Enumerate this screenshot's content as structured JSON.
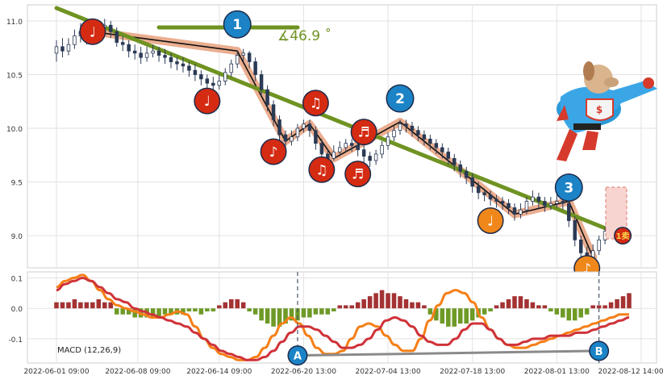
{
  "chart_data": [
    {
      "type": "candlestick",
      "panel": "price",
      "ylim": [
        8.7,
        11.15
      ],
      "yticks": [
        9.0,
        9.5,
        10.0,
        10.5,
        11.0
      ],
      "grid": true,
      "angle_label": "∡46.9 ˚",
      "candles_approx": [
        [
          10.7,
          10.76,
          10.62,
          10.82
        ],
        [
          10.76,
          10.72,
          10.66,
          10.84
        ],
        [
          10.72,
          10.78,
          10.68,
          10.84
        ],
        [
          10.78,
          10.86,
          10.74,
          10.92
        ],
        [
          10.86,
          10.9,
          10.8,
          10.98
        ],
        [
          10.9,
          10.84,
          10.78,
          10.96
        ],
        [
          10.84,
          10.88,
          10.8,
          10.94
        ],
        [
          10.88,
          10.94,
          10.84,
          11.0
        ],
        [
          10.94,
          10.96,
          10.88,
          11.02
        ],
        [
          10.96,
          10.9,
          10.84,
          11.0
        ],
        [
          10.9,
          10.8,
          10.76,
          10.94
        ],
        [
          10.8,
          10.78,
          10.72,
          10.86
        ],
        [
          10.78,
          10.72,
          10.66,
          10.82
        ],
        [
          10.72,
          10.7,
          10.64,
          10.78
        ],
        [
          10.7,
          10.66,
          10.6,
          10.76
        ],
        [
          10.66,
          10.7,
          10.62,
          10.76
        ],
        [
          10.7,
          10.72,
          10.66,
          10.78
        ],
        [
          10.72,
          10.68,
          10.62,
          10.76
        ],
        [
          10.68,
          10.66,
          10.6,
          10.74
        ],
        [
          10.66,
          10.62,
          10.56,
          10.7
        ],
        [
          10.62,
          10.6,
          10.54,
          10.66
        ],
        [
          10.6,
          10.58,
          10.52,
          10.66
        ],
        [
          10.58,
          10.54,
          10.48,
          10.62
        ],
        [
          10.54,
          10.5,
          10.44,
          10.6
        ],
        [
          10.5,
          10.46,
          10.4,
          10.54
        ],
        [
          10.46,
          10.42,
          10.36,
          10.5
        ],
        [
          10.42,
          10.4,
          10.36,
          10.48
        ],
        [
          10.4,
          10.44,
          10.36,
          10.5
        ],
        [
          10.44,
          10.52,
          10.4,
          10.56
        ],
        [
          10.52,
          10.6,
          10.48,
          10.64
        ],
        [
          10.6,
          10.68,
          10.56,
          10.72
        ],
        [
          10.68,
          10.7,
          10.62,
          10.74
        ],
        [
          10.7,
          10.62,
          10.56,
          10.72
        ],
        [
          10.62,
          10.5,
          10.44,
          10.66
        ],
        [
          10.5,
          10.36,
          10.3,
          10.54
        ],
        [
          10.36,
          10.22,
          10.16,
          10.4
        ],
        [
          10.22,
          10.08,
          10.02,
          10.26
        ],
        [
          10.08,
          9.94,
          9.88,
          10.12
        ],
        [
          9.94,
          9.88,
          9.82,
          9.98
        ],
        [
          9.88,
          9.92,
          9.84,
          9.98
        ],
        [
          9.92,
          10.0,
          9.88,
          10.04
        ],
        [
          10.0,
          10.04,
          9.96,
          10.08
        ],
        [
          10.04,
          9.98,
          9.92,
          10.08
        ],
        [
          9.98,
          9.86,
          9.8,
          10.02
        ],
        [
          9.86,
          9.76,
          9.7,
          9.9
        ],
        [
          9.76,
          9.72,
          9.66,
          9.8
        ],
        [
          9.72,
          9.78,
          9.7,
          9.84
        ],
        [
          9.78,
          9.82,
          9.74,
          9.88
        ],
        [
          9.82,
          9.86,
          9.78,
          9.9
        ],
        [
          9.86,
          9.84,
          9.78,
          9.9
        ],
        [
          9.84,
          9.8,
          9.74,
          9.88
        ],
        [
          9.8,
          9.74,
          9.68,
          9.84
        ],
        [
          9.74,
          9.7,
          9.64,
          9.78
        ],
        [
          9.7,
          9.76,
          9.66,
          9.8
        ],
        [
          9.76,
          9.84,
          9.72,
          9.88
        ],
        [
          9.84,
          9.92,
          9.8,
          9.96
        ],
        [
          9.92,
          9.98,
          9.88,
          10.02
        ],
        [
          9.98,
          10.04,
          9.94,
          10.08
        ],
        [
          10.04,
          10.02,
          9.96,
          10.08
        ],
        [
          10.02,
          9.98,
          9.92,
          10.06
        ],
        [
          9.98,
          9.94,
          9.88,
          10.02
        ],
        [
          9.94,
          9.9,
          9.84,
          9.98
        ],
        [
          9.9,
          9.86,
          9.8,
          9.94
        ],
        [
          9.86,
          9.82,
          9.76,
          9.9
        ],
        [
          9.82,
          9.78,
          9.72,
          9.86
        ],
        [
          9.78,
          9.72,
          9.66,
          9.82
        ],
        [
          9.72,
          9.66,
          9.6,
          9.76
        ],
        [
          9.66,
          9.6,
          9.54,
          9.7
        ],
        [
          9.6,
          9.54,
          9.48,
          9.64
        ],
        [
          9.54,
          9.46,
          9.4,
          9.58
        ],
        [
          9.46,
          9.4,
          9.34,
          9.5
        ],
        [
          9.4,
          9.38,
          9.32,
          9.44
        ],
        [
          9.38,
          9.34,
          9.28,
          9.42
        ],
        [
          9.34,
          9.32,
          9.26,
          9.38
        ],
        [
          9.32,
          9.3,
          9.24,
          9.36
        ],
        [
          9.3,
          9.26,
          9.2,
          9.34
        ],
        [
          9.26,
          9.2,
          9.14,
          9.3
        ],
        [
          9.2,
          9.24,
          9.16,
          9.3
        ],
        [
          9.24,
          9.32,
          9.2,
          9.36
        ],
        [
          9.32,
          9.36,
          9.28,
          9.42
        ],
        [
          9.36,
          9.32,
          9.26,
          9.4
        ],
        [
          9.32,
          9.28,
          9.22,
          9.36
        ],
        [
          9.28,
          9.3,
          9.24,
          9.36
        ],
        [
          9.3,
          9.32,
          9.26,
          9.38
        ],
        [
          9.32,
          9.3,
          9.24,
          9.36
        ],
        [
          9.3,
          9.14,
          9.08,
          9.32
        ],
        [
          9.14,
          8.96,
          8.9,
          9.18
        ],
        [
          8.96,
          8.84,
          8.78,
          9.0
        ],
        [
          8.84,
          8.78,
          8.74,
          8.9
        ],
        [
          8.78,
          8.86,
          8.76,
          8.92
        ],
        [
          8.86,
          8.96,
          8.82,
          9.0
        ],
        [
          8.96,
          9.04,
          8.92,
          9.08
        ],
        [
          9.04,
          9.12,
          9.0,
          9.16
        ],
        [
          9.12,
          9.2,
          9.08,
          9.24
        ],
        [
          9.2,
          9.26,
          9.16,
          9.3
        ]
      ],
      "trendlines": [
        {
          "name": "descending-trendline",
          "points": [
            [
              0,
              11.12
            ],
            [
              95,
              8.98
            ]
          ]
        },
        {
          "name": "angle-baseline",
          "points": [
            [
              17,
              10.94
            ],
            [
              40,
              10.94
            ]
          ]
        }
      ],
      "zigzag": [
        [
          6,
          10.9
        ],
        [
          30,
          10.72
        ],
        [
          38,
          9.88
        ],
        [
          42,
          10.04
        ],
        [
          46,
          9.72
        ],
        [
          57,
          10.06
        ],
        [
          76,
          9.2
        ],
        [
          85,
          9.32
        ],
        [
          89,
          8.8
        ]
      ],
      "markers": [
        {
          "label": "♩",
          "i": 6,
          "v": 10.9,
          "color": "#d42b12",
          "r": 15,
          "dx": 0,
          "dy": 0
        },
        {
          "label": "♩",
          "i": 25,
          "v": 10.42,
          "color": "#d42b12",
          "r": 15,
          "dx": 0,
          "dy": 22
        },
        {
          "label": "1",
          "i": 30,
          "v": 10.72,
          "color": "#1b83c6",
          "r": 16,
          "dx": 0,
          "dy": -33
        },
        {
          "label": "♪",
          "i": 36,
          "v": 9.88,
          "color": "#d42b12",
          "r": 15,
          "dx": 0,
          "dy": 13
        },
        {
          "label": "♫",
          "i": 43,
          "v": 10.04,
          "color": "#d42b12",
          "r": 15,
          "dx": 0,
          "dy": -26
        },
        {
          "label": "♫",
          "i": 44,
          "v": 9.72,
          "color": "#d42b12",
          "r": 15,
          "dx": 0,
          "dy": 14
        },
        {
          "label": "♬",
          "i": 51,
          "v": 9.86,
          "color": "#d42b12",
          "r": 15,
          "dx": 0,
          "dy": -14
        },
        {
          "label": "♬",
          "i": 50,
          "v": 9.68,
          "color": "#d42b12",
          "r": 15,
          "dx": 0,
          "dy": 14
        },
        {
          "label": "2",
          "i": 57,
          "v": 10.06,
          "color": "#1b83c6",
          "r": 16,
          "dx": 0,
          "dy": -29
        },
        {
          "label": "♩",
          "i": 72,
          "v": 9.14,
          "color": "#f0871a",
          "r": 15,
          "dx": 0,
          "dy": 0
        },
        {
          "label": "3",
          "i": 85,
          "v": 9.32,
          "color": "#1b83c6",
          "r": 16,
          "dx": 0,
          "dy": -17
        },
        {
          "label": "♪",
          "i": 88,
          "v": 8.74,
          "color": "#f0871a",
          "r": 15,
          "dx": 0,
          "dy": 6
        }
      ],
      "sell_badge": {
        "label": "1卖",
        "i": 93,
        "v": 9.0
      }
    },
    {
      "type": "macd",
      "panel": "indicator",
      "title": "MACD (12,26,9)",
      "ylim": [
        -0.18,
        0.12
      ],
      "yticks": [
        0.1,
        0.0,
        -0.1
      ],
      "histogram": [
        0.02,
        0.02,
        0.02,
        0.03,
        0.02,
        0.02,
        0.02,
        0.03,
        0.02,
        0.02,
        -0.02,
        -0.02,
        -0.02,
        -0.03,
        -0.03,
        -0.03,
        -0.03,
        -0.03,
        -0.02,
        -0.02,
        -0.02,
        -0.02,
        -0.01,
        -0.01,
        -0.02,
        -0.01,
        -0.01,
        0.01,
        0.02,
        0.03,
        0.03,
        0.02,
        -0.01,
        -0.02,
        -0.04,
        -0.05,
        -0.06,
        -0.06,
        -0.05,
        -0.04,
        -0.04,
        -0.03,
        -0.03,
        -0.02,
        -0.02,
        -0.02,
        -0.01,
        0.01,
        0.01,
        0.01,
        0.02,
        0.03,
        0.04,
        0.05,
        0.06,
        0.05,
        0.05,
        0.04,
        0.03,
        0.02,
        0.02,
        0.01,
        -0.02,
        -0.04,
        -0.05,
        -0.06,
        -0.06,
        -0.05,
        -0.05,
        -0.04,
        -0.03,
        -0.02,
        -0.01,
        0.01,
        0.02,
        0.03,
        0.04,
        0.04,
        0.03,
        0.02,
        0.01,
        0.01,
        -0.01,
        -0.02,
        -0.03,
        -0.04,
        -0.04,
        -0.03,
        -0.02,
        0.01,
        0.01,
        0.01,
        0.02,
        0.03,
        0.04,
        0.05
      ],
      "macd_line": [
        0.07,
        0.09,
        0.1,
        0.11,
        0.09,
        0.06,
        0.03,
        0.01,
        0.0,
        -0.01,
        -0.02,
        -0.03,
        -0.03,
        -0.02,
        -0.01,
        -0.02,
        -0.06,
        -0.1,
        -0.13,
        -0.15,
        -0.16,
        -0.17,
        -0.17,
        -0.16,
        -0.13,
        -0.09,
        -0.05,
        -0.03,
        -0.05,
        -0.09,
        -0.13,
        -0.15,
        -0.15,
        -0.14,
        -0.1,
        -0.06,
        -0.05,
        -0.06,
        -0.09,
        -0.12,
        -0.14,
        -0.14,
        -0.1,
        -0.04,
        0.01,
        0.05,
        0.06,
        0.05,
        0.02,
        -0.03,
        -0.07,
        -0.1,
        -0.12,
        -0.13,
        -0.13,
        -0.12,
        -0.11,
        -0.1,
        -0.09,
        -0.08,
        -0.07,
        -0.06,
        -0.05,
        -0.04,
        -0.03,
        -0.02,
        -0.02
      ],
      "signal_line": [
        0.06,
        0.08,
        0.09,
        0.1,
        0.09,
        0.07,
        0.05,
        0.03,
        0.02,
        0.0,
        -0.01,
        -0.02,
        -0.03,
        -0.04,
        -0.05,
        -0.06,
        -0.08,
        -0.1,
        -0.12,
        -0.14,
        -0.15,
        -0.16,
        -0.17,
        -0.17,
        -0.16,
        -0.14,
        -0.11,
        -0.08,
        -0.06,
        -0.06,
        -0.07,
        -0.09,
        -0.11,
        -0.13,
        -0.13,
        -0.12,
        -0.1,
        -0.07,
        -0.04,
        -0.03,
        -0.04,
        -0.06,
        -0.09,
        -0.11,
        -0.12,
        -0.12,
        -0.1,
        -0.07,
        -0.05,
        -0.05,
        -0.07,
        -0.1,
        -0.12,
        -0.12,
        -0.11,
        -0.1,
        -0.1,
        -0.09,
        -0.09,
        -0.09,
        -0.08,
        -0.08,
        -0.07,
        -0.06,
        -0.05,
        -0.04,
        -0.03
      ],
      "divergence_points": [
        {
          "label": "A",
          "i": 40,
          "v": -0.155
        },
        {
          "label": "B",
          "i": 90,
          "v": -0.14
        }
      ],
      "vlines_i": [
        40,
        90
      ]
    }
  ],
  "x_axis": {
    "count": 96,
    "tick_labels": [
      "2022-06-01 09:00",
      "2022-06-08 09:00",
      "2022-06-14 09:00",
      "2022-06-20 13:00",
      "2022-07-04 13:00",
      "2022-07-18 13:00",
      "2022-08-01 13:00",
      "2022-08-12 14:00"
    ],
    "tick_positions_i": [
      0,
      13.5,
      27,
      41,
      55,
      69,
      83,
      97
    ]
  },
  "colors": {
    "trend_green": "#6f9322",
    "zigzag_fill": "#e7a07c",
    "macd_line": "#cf3339",
    "signal_line": "#f57f17",
    "hist_pos": "#a43233",
    "hist_neg": "#6e9a26",
    "divergence_line": "#8a8a8a"
  }
}
